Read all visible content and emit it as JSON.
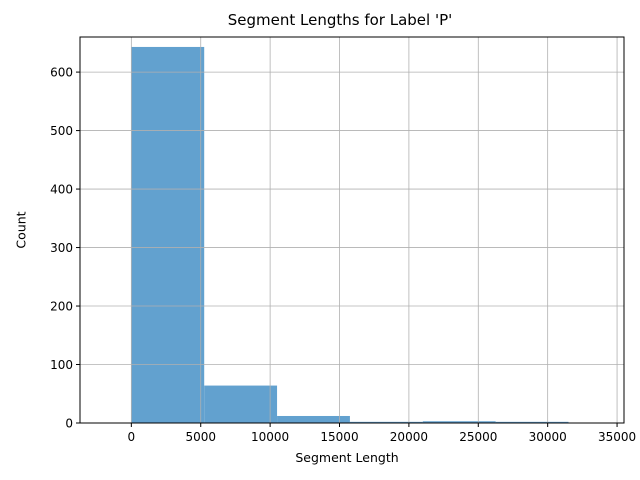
{
  "chart_data": {
    "type": "bar",
    "title": "Segment Lengths for Label 'P'",
    "xlabel": "Segment Length",
    "ylabel": "Count",
    "bin_edges": [
      0,
      5250,
      10500,
      15750,
      21000,
      26250,
      31500
    ],
    "values": [
      643,
      64,
      12,
      2,
      3,
      2
    ],
    "xlim": [
      -3700,
      35500
    ],
    "ylim": [
      0,
      660
    ],
    "xticks": [
      0,
      5000,
      10000,
      15000,
      20000,
      25000,
      30000,
      35000
    ],
    "xtick_labels": [
      "0",
      "5000",
      "10000",
      "15000",
      "20000",
      "25000",
      "30000",
      "35000"
    ],
    "yticks": [
      0,
      100,
      200,
      300,
      400,
      500,
      600
    ],
    "ytick_labels": [
      "0",
      "100",
      "200",
      "300",
      "400",
      "500",
      "600"
    ],
    "grid": true,
    "bar_color": "#62a1cf"
  }
}
